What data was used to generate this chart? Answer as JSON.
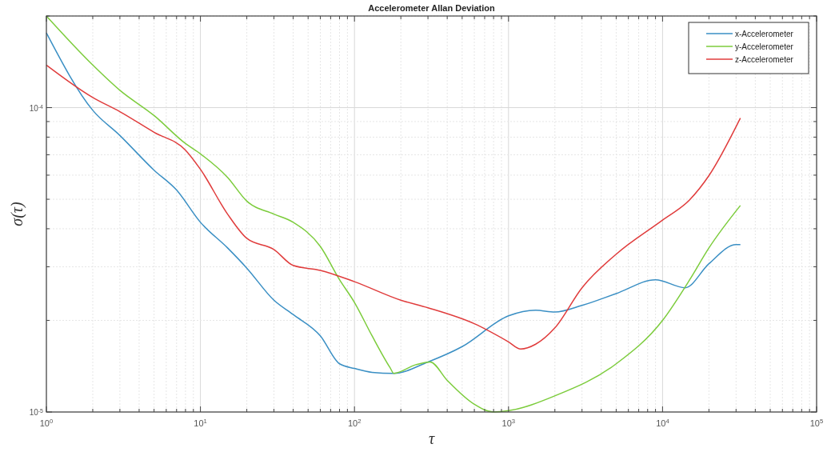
{
  "chart_data": {
    "type": "line",
    "title": "Accelerometer Allan Deviation",
    "xlabel": "τ",
    "ylabel": "σ(τ)",
    "log": "xy",
    "grid": true,
    "legend": "top right",
    "line_style": "solid",
    "marker": "none",
    "xlim": [
      1,
      100000
    ],
    "ylim": [
      1e-05,
      0.0002
    ],
    "xticks": [
      {
        "value": 1,
        "label": "10$^{0}$"
      },
      {
        "value": 2,
        "label": null
      },
      {
        "value": 3,
        "label": null
      },
      {
        "value": 4,
        "label": null
      },
      {
        "value": 5,
        "label": null
      },
      {
        "value": 6,
        "label": null
      },
      {
        "value": 7,
        "label": null
      },
      {
        "value": 8,
        "label": null
      },
      {
        "value": 9,
        "label": null
      },
      {
        "value": 10,
        "label": "10$^{1}$"
      },
      {
        "value": 20,
        "label": null
      },
      {
        "value": 30,
        "label": null
      },
      {
        "value": 40,
        "label": null
      },
      {
        "value": 50,
        "label": null
      },
      {
        "value": 60,
        "label": null
      },
      {
        "value": 70,
        "label": null
      },
      {
        "value": 80,
        "label": null
      },
      {
        "value": 90,
        "label": null
      },
      {
        "value": 100,
        "label": "10$^{2}$"
      },
      {
        "value": 200,
        "label": null
      },
      {
        "value": 300,
        "label": null
      },
      {
        "value": 400,
        "label": null
      },
      {
        "value": 500,
        "label": null
      },
      {
        "value": 600,
        "label": null
      },
      {
        "value": 700,
        "label": null
      },
      {
        "value": 800,
        "label": null
      },
      {
        "value": 900,
        "label": null
      },
      {
        "value": 1000,
        "label": "10$^{3}$"
      },
      {
        "value": 2000,
        "label": null
      },
      {
        "value": 3000,
        "label": null
      },
      {
        "value": 4000,
        "label": null
      },
      {
        "value": 5000,
        "label": null
      },
      {
        "value": 6000,
        "label": null
      },
      {
        "value": 7000,
        "label": null
      },
      {
        "value": 8000,
        "label": null
      },
      {
        "value": 9000,
        "label": null
      },
      {
        "value": 10000,
        "label": "10$^{4}$"
      },
      {
        "value": 20000,
        "label": null
      },
      {
        "value": 30000,
        "label": null
      },
      {
        "value": 40000,
        "label": null
      },
      {
        "value": 50000,
        "label": null
      },
      {
        "value": 60000,
        "label": null
      },
      {
        "value": 70000,
        "label": null
      },
      {
        "value": 80000,
        "label": null
      },
      {
        "value": 90000,
        "label": null
      },
      {
        "value": 100000,
        "label": "10$^{5}$"
      }
    ],
    "yticks": [
      {
        "value": 1e-05,
        "label": "10$^{-5}$"
      },
      {
        "value": 2e-05,
        "label": null
      },
      {
        "value": 3e-05,
        "label": null
      },
      {
        "value": 4e-05,
        "label": null
      },
      {
        "value": 5e-05,
        "label": null
      },
      {
        "value": 6e-05,
        "label": null
      },
      {
        "value": 7e-05,
        "label": null
      },
      {
        "value": 8e-05,
        "label": null
      },
      {
        "value": 9e-05,
        "label": null
      },
      {
        "value": 0.0001,
        "label": "10$^{-4}$"
      },
      {
        "value": 0.0002,
        "label": null
      }
    ],
    "series": [
      {
        "name": "x-Accelerometer",
        "color": "#3a8fc4",
        "x": [
          1,
          2,
          3,
          5,
          7,
          10,
          15,
          20,
          30,
          40,
          60,
          80,
          100,
          130,
          180,
          300,
          500,
          1000,
          1500,
          2000,
          3000,
          5000,
          9000,
          14000,
          20000,
          30000,
          32000
        ],
        "values": [
          0.000176,
          9.8e-05,
          8.1e-05,
          6.23e-05,
          5.36e-05,
          4.2e-05,
          3.46e-05,
          2.97e-05,
          2.33e-05,
          2.09e-05,
          1.78e-05,
          1.44e-05,
          1.39e-05,
          1.35e-05,
          1.34e-05,
          1.46e-05,
          1.64e-05,
          2.07e-05,
          2.16e-05,
          2.13e-05,
          2.24e-05,
          2.45e-05,
          2.72e-05,
          2.56e-05,
          3.07e-05,
          3.55e-05,
          3.55e-05
        ]
      },
      {
        "name": "y-Accelerometer",
        "color": "#7ccc3c",
        "x": [
          1,
          2,
          3,
          5,
          8,
          10,
          15,
          20,
          30,
          40,
          60,
          80,
          100,
          130,
          170,
          180,
          250,
          310,
          400,
          600,
          800,
          1000,
          2000,
          5000,
          10000,
          15000,
          20000,
          32000
        ],
        "values": [
          0.0002,
          0.000138,
          0.000114,
          9.42e-05,
          7.62e-05,
          7.05e-05,
          5.9e-05,
          4.93e-05,
          4.47e-05,
          4.2e-05,
          3.5e-05,
          2.72e-05,
          2.29e-05,
          1.78e-05,
          1.4e-05,
          1.34e-05,
          1.43e-05,
          1.46e-05,
          1.27e-05,
          1.06e-05,
          1e-05,
          1.01e-05,
          1.13e-05,
          1.44e-05,
          2e-05,
          2.72e-05,
          3.46e-05,
          4.77e-05
        ]
      },
      {
        "name": "z-Accelerometer",
        "color": "#e03c3c",
        "x": [
          1,
          2,
          3,
          5,
          8,
          10,
          15,
          20,
          30,
          40,
          60,
          100,
          200,
          300,
          600,
          1000,
          1200,
          1500,
          2000,
          3000,
          5000,
          10000,
          15000,
          20000,
          32000
        ],
        "values": [
          0.000138,
          0.000108,
          9.7e-05,
          8.3e-05,
          7.25e-05,
          6.27e-05,
          4.47e-05,
          3.72e-05,
          3.42e-05,
          3.03e-05,
          2.92e-05,
          2.68e-05,
          2.33e-05,
          2.2e-05,
          1.95e-05,
          1.7e-05,
          1.61e-05,
          1.67e-05,
          1.89e-05,
          2.56e-05,
          3.3e-05,
          4.27e-05,
          4.98e-05,
          5.98e-05,
          9.24e-05
        ]
      }
    ]
  }
}
